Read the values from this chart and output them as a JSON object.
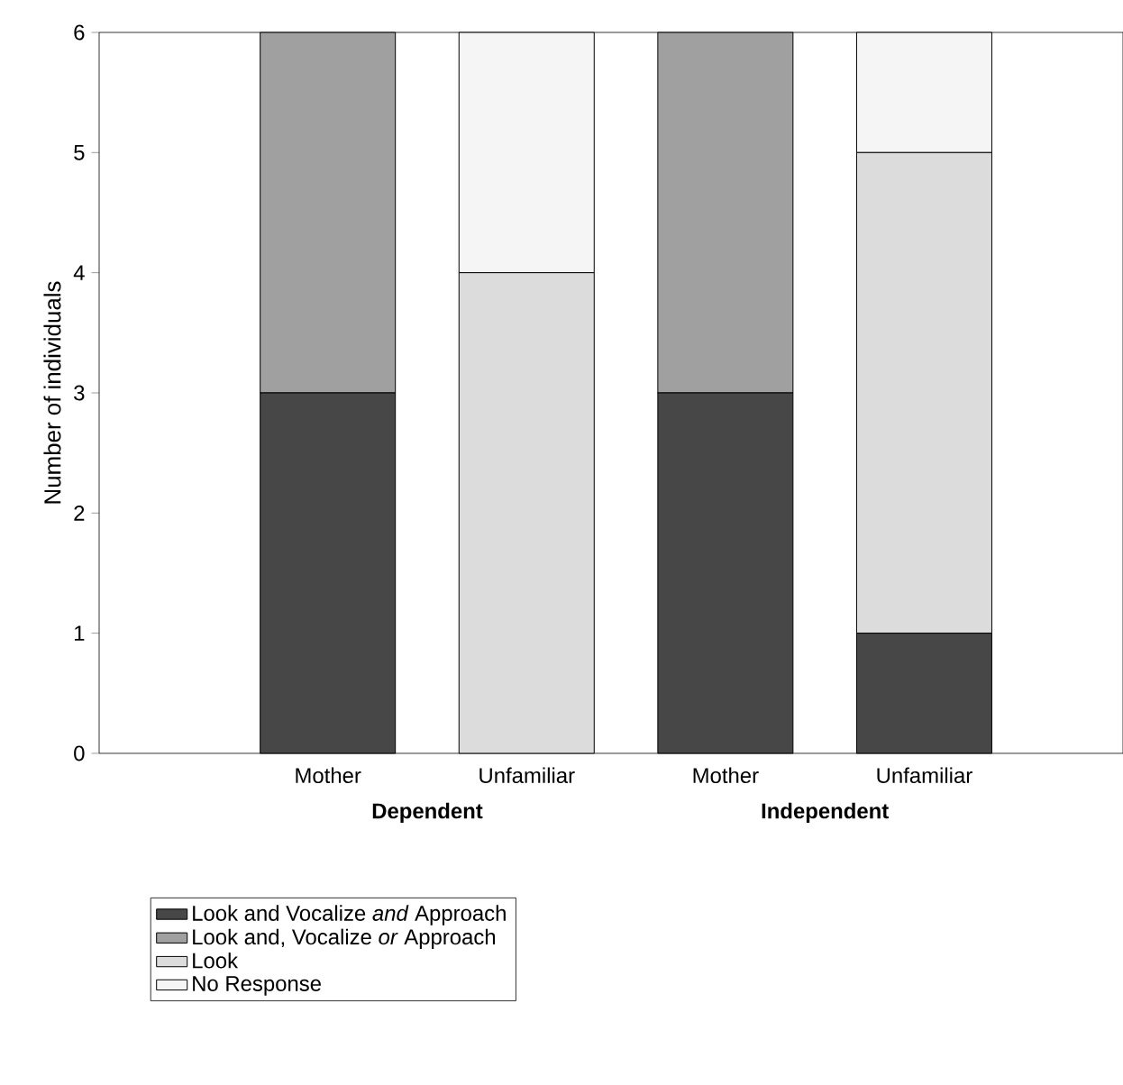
{
  "chart_data": {
    "type": "bar",
    "stacked": true,
    "categories": [
      "Mother",
      "Unfamiliar",
      "Mother",
      "Unfamiliar"
    ],
    "ylabel": "Number of individuals",
    "ylim": [
      0,
      6
    ],
    "yticks": [
      0,
      1,
      2,
      3,
      4,
      5,
      6
    ],
    "annotations": [
      "Dependent",
      "Independent"
    ],
    "legend": "bottom",
    "series": [
      {
        "name": "Look and Vocalize *and* Approach",
        "color": "#474747",
        "values": [
          3,
          0,
          3,
          1
        ]
      },
      {
        "name": "Look and, Vocalize *or* Approach",
        "color": "#a0a0a0",
        "values": [
          3,
          0,
          3,
          0
        ]
      },
      {
        "name": "Look",
        "color": "#dcdcdc",
        "values": [
          0,
          4,
          0,
          4
        ]
      },
      {
        "name": "No Response",
        "color": "#f5f5f5",
        "values": [
          0,
          2,
          0,
          1
        ]
      }
    ]
  }
}
